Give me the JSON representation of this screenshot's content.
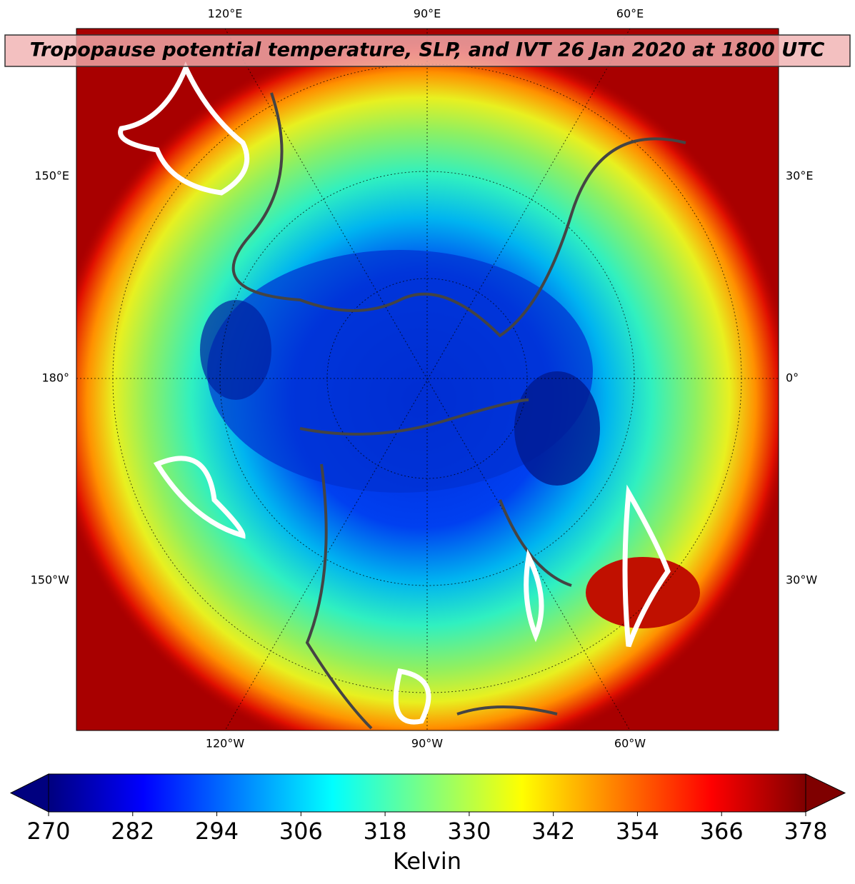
{
  "title": "Tropopause potential temperature, SLP, and IVT 26 Jan 2020 at 1800 UTC",
  "map": {
    "lon_labels_top": [
      "120°E",
      "90°E",
      "60°E"
    ],
    "lon_labels_bottom": [
      "120°W",
      "90°W",
      "60°W"
    ],
    "lon_labels_left": [
      "150°E",
      "180°",
      "150°W"
    ],
    "lon_labels_right": [
      "30°E",
      "0°",
      "30°W"
    ]
  },
  "colorbar": {
    "colormap": "jet",
    "lim": [
      270,
      378
    ],
    "ticks": [
      270,
      282,
      294,
      306,
      318,
      330,
      342,
      354,
      366,
      378
    ],
    "label": "Kelvin",
    "extend": "both"
  }
}
